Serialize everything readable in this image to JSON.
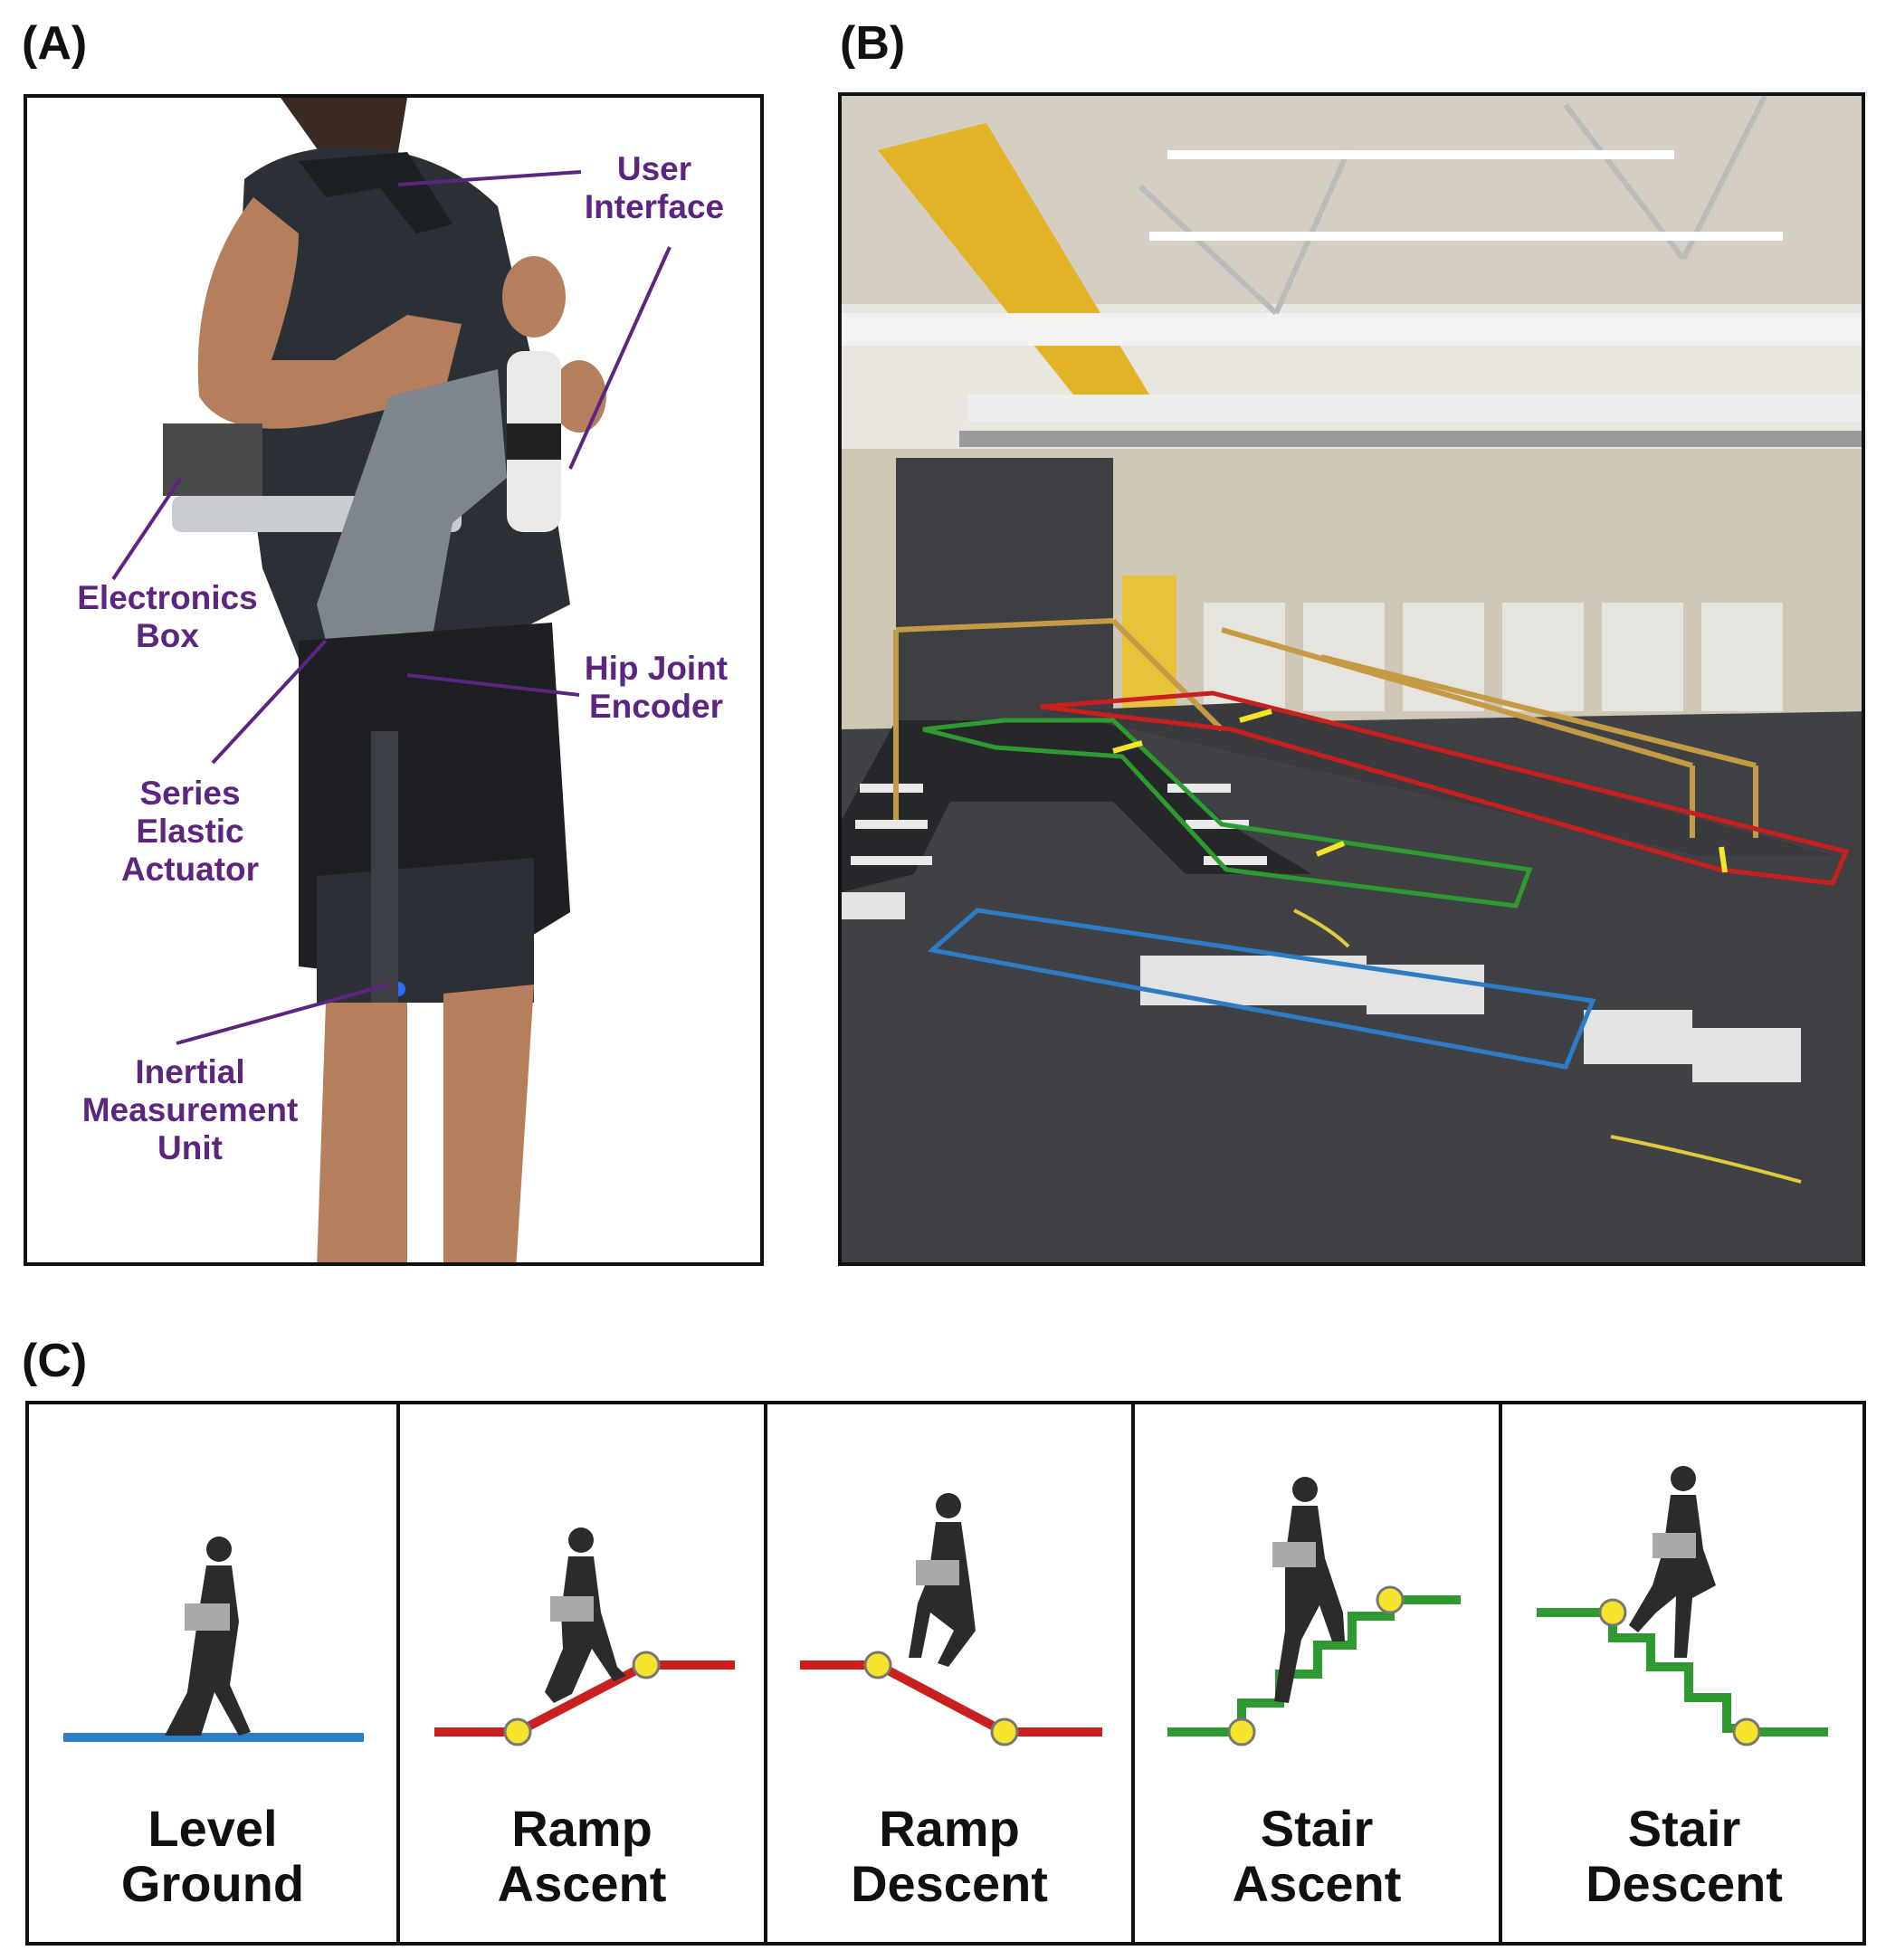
{
  "panels": {
    "a": {
      "letter": "(A)",
      "callouts": {
        "user_interface": "User\nInterface",
        "electronics_box": "Electronics\nBox",
        "hip_joint_encoder": "Hip Joint\nEncoder",
        "series_elastic_actuator": "Series\nElastic\nActuator",
        "inertial_measurement_unit": "Inertial\nMeasurement\nUnit"
      }
    },
    "b": {
      "letter": "(B)"
    },
    "c": {
      "letter": "(C)",
      "modes": [
        {
          "label": "Level\nGround",
          "path_color": "#2e7cc4"
        },
        {
          "label": "Ramp\nAscent",
          "path_color": "#c8201f"
        },
        {
          "label": "Ramp\nDescent",
          "path_color": "#c8201f"
        },
        {
          "label": "Stair\nAscent",
          "path_color": "#2f9a31"
        },
        {
          "label": "Stair\nDescent",
          "path_color": "#2f9a31"
        }
      ]
    }
  },
  "colors": {
    "callout_purple": "#5b2580",
    "transition_marker": "#f6e32b",
    "level_ground": "#2e7cc4",
    "ramp": "#c8201f",
    "stair": "#2f9a31"
  }
}
